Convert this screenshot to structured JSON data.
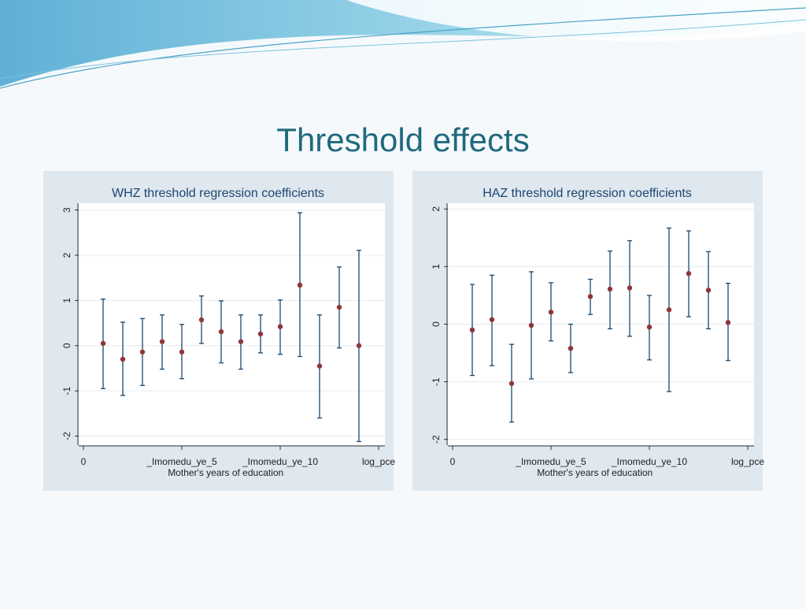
{
  "slide_title": "Threshold effects",
  "chart_data": [
    {
      "type": "errorbar",
      "title": "WHZ threshold regression coefficients",
      "xlabel": "Mother's years of education",
      "x": [
        1,
        2,
        3,
        4,
        5,
        6,
        7,
        8,
        9,
        10,
        11,
        12,
        13,
        14
      ],
      "series": [
        {
          "color": "#90353b",
          "bar_color": "#1a476f",
          "values": [
            0.05,
            -0.3,
            -0.14,
            0.09,
            -0.14,
            0.57,
            0.31,
            0.09,
            0.26,
            0.42,
            1.34,
            -0.45,
            0.85,
            0
          ],
          "lower": [
            -0.95,
            -1.1,
            -0.88,
            -0.52,
            -0.73,
            0.05,
            -0.38,
            -0.52,
            -0.16,
            -0.19,
            -0.24,
            -1.6,
            -0.05,
            -2.12
          ],
          "upper": [
            1.03,
            0.52,
            0.6,
            0.68,
            0.47,
            1.1,
            0.99,
            0.68,
            0.68,
            1.01,
            2.94,
            0.68,
            1.74,
            2.11
          ]
        }
      ],
      "xlim": [
        -0.24,
        15.32
      ],
      "ylim": [
        -2.2,
        3.15
      ],
      "xticks": [
        0,
        {
          "value": 5,
          "label": "_Imomedu_ye_5"
        },
        {
          "value": 10,
          "label": "_Imomedu_ye_10"
        },
        {
          "value": 15,
          "label": "log_pce"
        }
      ],
      "yticks": [
        -2,
        -1,
        0,
        1,
        2,
        3
      ],
      "grid": true
    },
    {
      "type": "errorbar",
      "title": "HAZ threshold regression coefficients",
      "xlabel": "Mother's years of education",
      "x": [
        1,
        2,
        3,
        4,
        5,
        6,
        7,
        8,
        9,
        10,
        11,
        12,
        13,
        14
      ],
      "series": [
        {
          "color": "#90353b",
          "bar_color": "#1a476f",
          "values": [
            -0.1,
            0.08,
            -1.03,
            -0.02,
            0.21,
            -0.42,
            0.48,
            0.61,
            0.63,
            -0.05,
            0.25,
            0.88,
            0.59,
            0.03
          ],
          "lower": [
            -0.89,
            -0.72,
            -1.7,
            -0.95,
            -0.29,
            -0.84,
            0.17,
            -0.08,
            -0.21,
            -0.62,
            -1.17,
            0.13,
            -0.08,
            -0.63
          ],
          "upper": [
            0.69,
            0.85,
            -0.35,
            0.91,
            0.72,
            0,
            0.78,
            1.27,
            1.45,
            0.5,
            1.67,
            1.62,
            1.26,
            0.71
          ]
        }
      ],
      "xlim": [
        -0.24,
        15.32
      ],
      "ylim": [
        -2.1,
        2.1
      ],
      "xticks": [
        0,
        {
          "value": 5,
          "label": "_Imomedu_ye_5"
        },
        {
          "value": 10,
          "label": "_Imomedu_ye_10"
        },
        {
          "value": 15,
          "label": "log_pce"
        }
      ],
      "yticks": [
        -2,
        -1,
        0,
        1,
        2
      ],
      "grid": true
    }
  ]
}
